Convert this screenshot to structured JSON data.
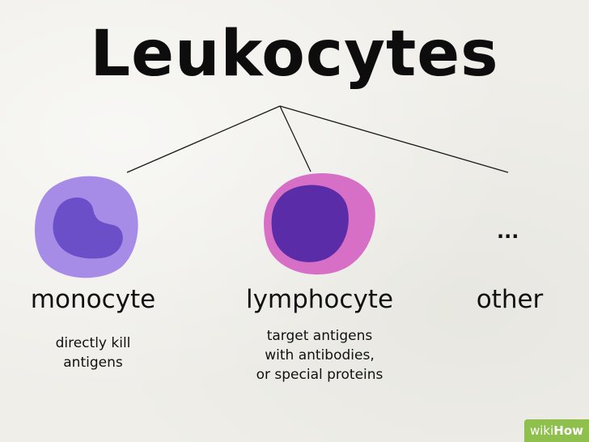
{
  "title": "Leukocytes",
  "branches": [
    {
      "label": "monocyte",
      "description": [
        "directly kill",
        "antigens"
      ]
    },
    {
      "label": "lymphocyte",
      "description": [
        "target antigens",
        "with antibodies,",
        "or special proteins"
      ]
    },
    {
      "label": "other",
      "description": []
    }
  ],
  "other_marker": "...",
  "watermark": {
    "prefix": "wiki",
    "suffix": "How"
  },
  "colors": {
    "monocyte_cell": "#a186e6",
    "monocyte_nucleus": "#6b4fc9",
    "lymphocyte_cell": "#d86fc6",
    "lymphocyte_nucleus": "#5b2ca8",
    "watermark_bg": "#8fbf4d"
  }
}
